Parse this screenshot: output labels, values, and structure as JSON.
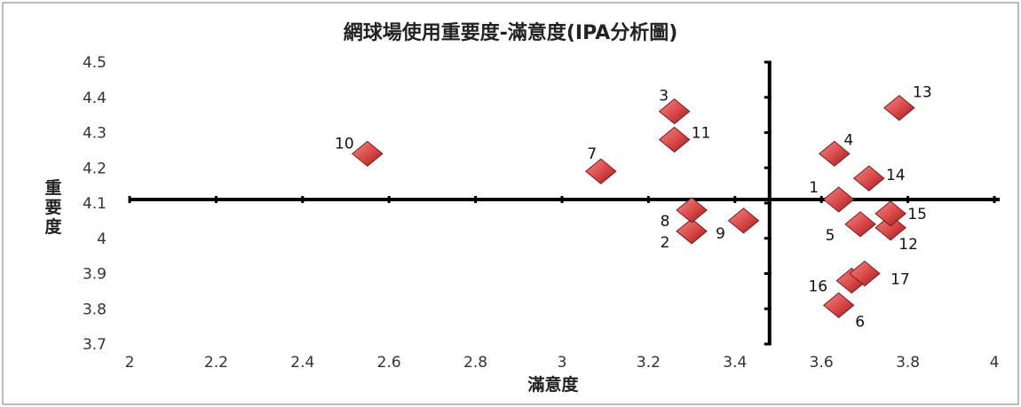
{
  "chart_data": {
    "type": "scatter",
    "title": "網球場使用重要度-滿意度(IPA分析圖)",
    "xlabel": "滿意度",
    "ylabel": "重要度",
    "xlim": [
      2,
      4
    ],
    "ylim": [
      3.7,
      4.5
    ],
    "x_ticks": [
      "2",
      "2.2",
      "2.4",
      "2.6",
      "2.8",
      "3",
      "3.2",
      "3.4",
      "3.6",
      "3.8",
      "4"
    ],
    "y_ticks": [
      "3.7",
      "3.8",
      "3.9",
      "4",
      "4.1",
      "4.2",
      "4.3",
      "4.4",
      "4.5"
    ],
    "crosshair": {
      "x": 3.48,
      "y": 4.11
    },
    "marker": "diamond",
    "marker_color": "#d94646",
    "points": [
      {
        "label": "1",
        "x": 3.64,
        "y": 4.11
      },
      {
        "label": "2",
        "x": 3.3,
        "y": 4.02
      },
      {
        "label": "3",
        "x": 3.26,
        "y": 4.36
      },
      {
        "label": "4",
        "x": 3.63,
        "y": 4.24
      },
      {
        "label": "5",
        "x": 3.69,
        "y": 4.04
      },
      {
        "label": "6",
        "x": 3.64,
        "y": 3.81
      },
      {
        "label": "7",
        "x": 3.09,
        "y": 4.19
      },
      {
        "label": "8",
        "x": 3.3,
        "y": 4.08
      },
      {
        "label": "9",
        "x": 3.42,
        "y": 4.05
      },
      {
        "label": "10",
        "x": 2.55,
        "y": 4.24
      },
      {
        "label": "11",
        "x": 3.26,
        "y": 4.28
      },
      {
        "label": "12",
        "x": 3.76,
        "y": 4.03
      },
      {
        "label": "13",
        "x": 3.78,
        "y": 4.37
      },
      {
        "label": "14",
        "x": 3.71,
        "y": 4.17
      },
      {
        "label": "15",
        "x": 3.76,
        "y": 4.07
      },
      {
        "label": "16",
        "x": 3.67,
        "y": 3.88
      },
      {
        "label": "17",
        "x": 3.7,
        "y": 3.9
      }
    ]
  }
}
